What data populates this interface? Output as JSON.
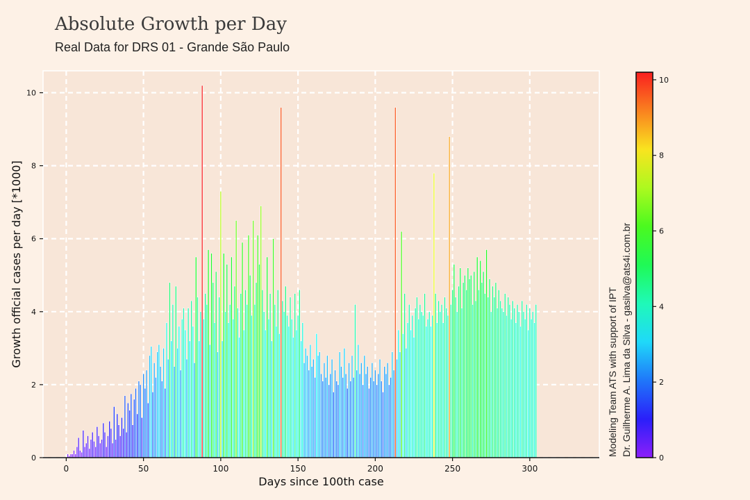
{
  "header": {
    "title": "Absolute Growth per Day",
    "subtitle": "Real Data for DRS 01 - Grande São Paulo"
  },
  "credits": {
    "line1": "Modeling Team ATS with support of IPT",
    "line2": "Dr. Guilherme A. Lima da Silva - gasilva@ats4i.com.br"
  },
  "colors": {
    "background": "#fdf1e6",
    "plot_background": "#f8e6d8",
    "grid": "#ffffff",
    "colormap": "rainbow"
  },
  "chart_data": {
    "type": "bar",
    "title": "",
    "xlabel": "Days since 100th case",
    "ylabel": "Growth official cases per day [*1000]",
    "xlim": [
      -15,
      345
    ],
    "ylim": [
      0,
      10.6
    ],
    "xticks": [
      0,
      50,
      100,
      150,
      200,
      250,
      300
    ],
    "yticks": [
      0,
      2,
      4,
      6,
      8,
      10
    ],
    "grid": true,
    "colorbar": {
      "min": 0,
      "max": 10.2,
      "ticks": [
        0,
        2,
        4,
        6,
        8,
        10
      ]
    },
    "days_start": 1,
    "values": [
      0.1,
      0.05,
      0.1,
      0.1,
      0.2,
      0.1,
      0.3,
      0.55,
      0.2,
      0.15,
      0.75,
      0.3,
      0.4,
      0.6,
      0.25,
      0.5,
      0.7,
      0.45,
      0.3,
      0.85,
      0.6,
      0.4,
      0.5,
      0.95,
      0.7,
      0.3,
      0.6,
      1.0,
      0.8,
      0.4,
      1.4,
      0.5,
      1.2,
      0.9,
      0.6,
      1.1,
      0.8,
      1.7,
      0.7,
      1.5,
      1.3,
      1.75,
      0.9,
      1.6,
      1.9,
      1.2,
      2.1,
      2.0,
      1.1,
      2.3,
      1.9,
      2.4,
      1.5,
      2.8,
      3.05,
      1.8,
      2.6,
      2.2,
      2.9,
      3.1,
      2.5,
      2.1,
      3.0,
      1.9,
      3.7,
      2.7,
      4.8,
      3.2,
      4.2,
      2.5,
      4.7,
      3.0,
      3.6,
      2.4,
      3.8,
      4.1,
      3.5,
      2.7,
      4.1,
      3.2,
      4.3,
      3.6,
      2.6,
      5.5,
      4.4,
      3.2,
      4.0,
      10.2,
      3.8,
      4.5,
      4.2,
      5.7,
      3.1,
      5.6,
      4.8,
      3.7,
      5.1,
      2.9,
      4.4,
      7.3,
      3.2,
      5.6,
      4.0,
      5.3,
      3.7,
      4.2,
      5.5,
      3.8,
      4.7,
      6.5,
      4.1,
      3.3,
      4.5,
      5.9,
      3.5,
      4.6,
      4.2,
      6.1,
      5.0,
      3.9,
      6.5,
      4.2,
      4.8,
      6.1,
      5.3,
      6.9,
      4.6,
      4.0,
      3.5,
      5.5,
      3.8,
      4.5,
      3.2,
      6.0,
      4.2,
      3.6,
      4.6,
      3.4,
      9.6,
      4.3,
      4.0,
      4.7,
      3.9,
      3.6,
      4.4,
      3.8,
      3.3,
      4.5,
      3.5,
      3.9,
      4.6,
      3.2,
      3.7,
      2.6,
      3.0,
      2.8,
      2.4,
      3.1,
      2.5,
      2.7,
      2.2,
      3.4,
      2.8,
      2.9,
      2.3,
      2.1,
      2.6,
      2.2,
      2.8,
      2.0,
      2.3,
      2.7,
      1.8,
      2.4,
      2.1,
      2.0,
      2.9,
      2.5,
      2.2,
      3.0,
      2.3,
      1.9,
      2.6,
      2.1,
      2.8,
      2.2,
      4.2,
      2.4,
      3.1,
      2.3,
      2.6,
      2.0,
      2.8,
      2.3,
      2.5,
      1.9,
      2.2,
      2.6,
      2.1,
      2.4,
      2.0,
      2.3,
      2.7,
      2.1,
      1.8,
      2.5,
      2.3,
      2.6,
      2.0,
      2.2,
      2.9,
      2.4,
      9.6,
      2.7,
      3.5,
      2.9,
      6.2,
      3.4,
      4.5,
      3.0,
      3.7,
      4.2,
      3.5,
      3.9,
      3.3,
      4.1,
      4.4,
      3.8,
      4.2,
      4.0,
      3.9,
      4.5,
      3.6,
      3.8,
      4.0,
      3.6,
      3.9,
      7.8,
      4.5,
      3.7,
      4.3,
      4.0,
      4.2,
      3.7,
      4.4,
      4.1,
      3.9,
      8.8,
      4.2,
      4.6,
      5.3,
      4.4,
      4.0,
      4.7,
      5.2,
      4.1,
      4.8,
      5.0,
      4.6,
      5.2,
      4.9,
      5.0,
      4.2,
      5.1,
      4.3,
      5.5,
      4.6,
      5.4,
      4.8,
      5.1,
      4.5,
      5.7,
      4.4,
      4.9,
      4.0,
      4.7,
      4.4,
      4.8,
      4.1,
      4.6,
      4.3,
      4.1,
      4.0,
      4.5,
      3.9,
      4.4,
      4.2,
      3.8,
      4.3,
      4.1,
      3.7,
      4.2,
      4.0,
      3.6,
      4.3,
      4.0,
      3.8,
      4.2,
      3.5,
      4.1,
      3.8,
      4.0,
      3.7,
      4.2
    ]
  }
}
